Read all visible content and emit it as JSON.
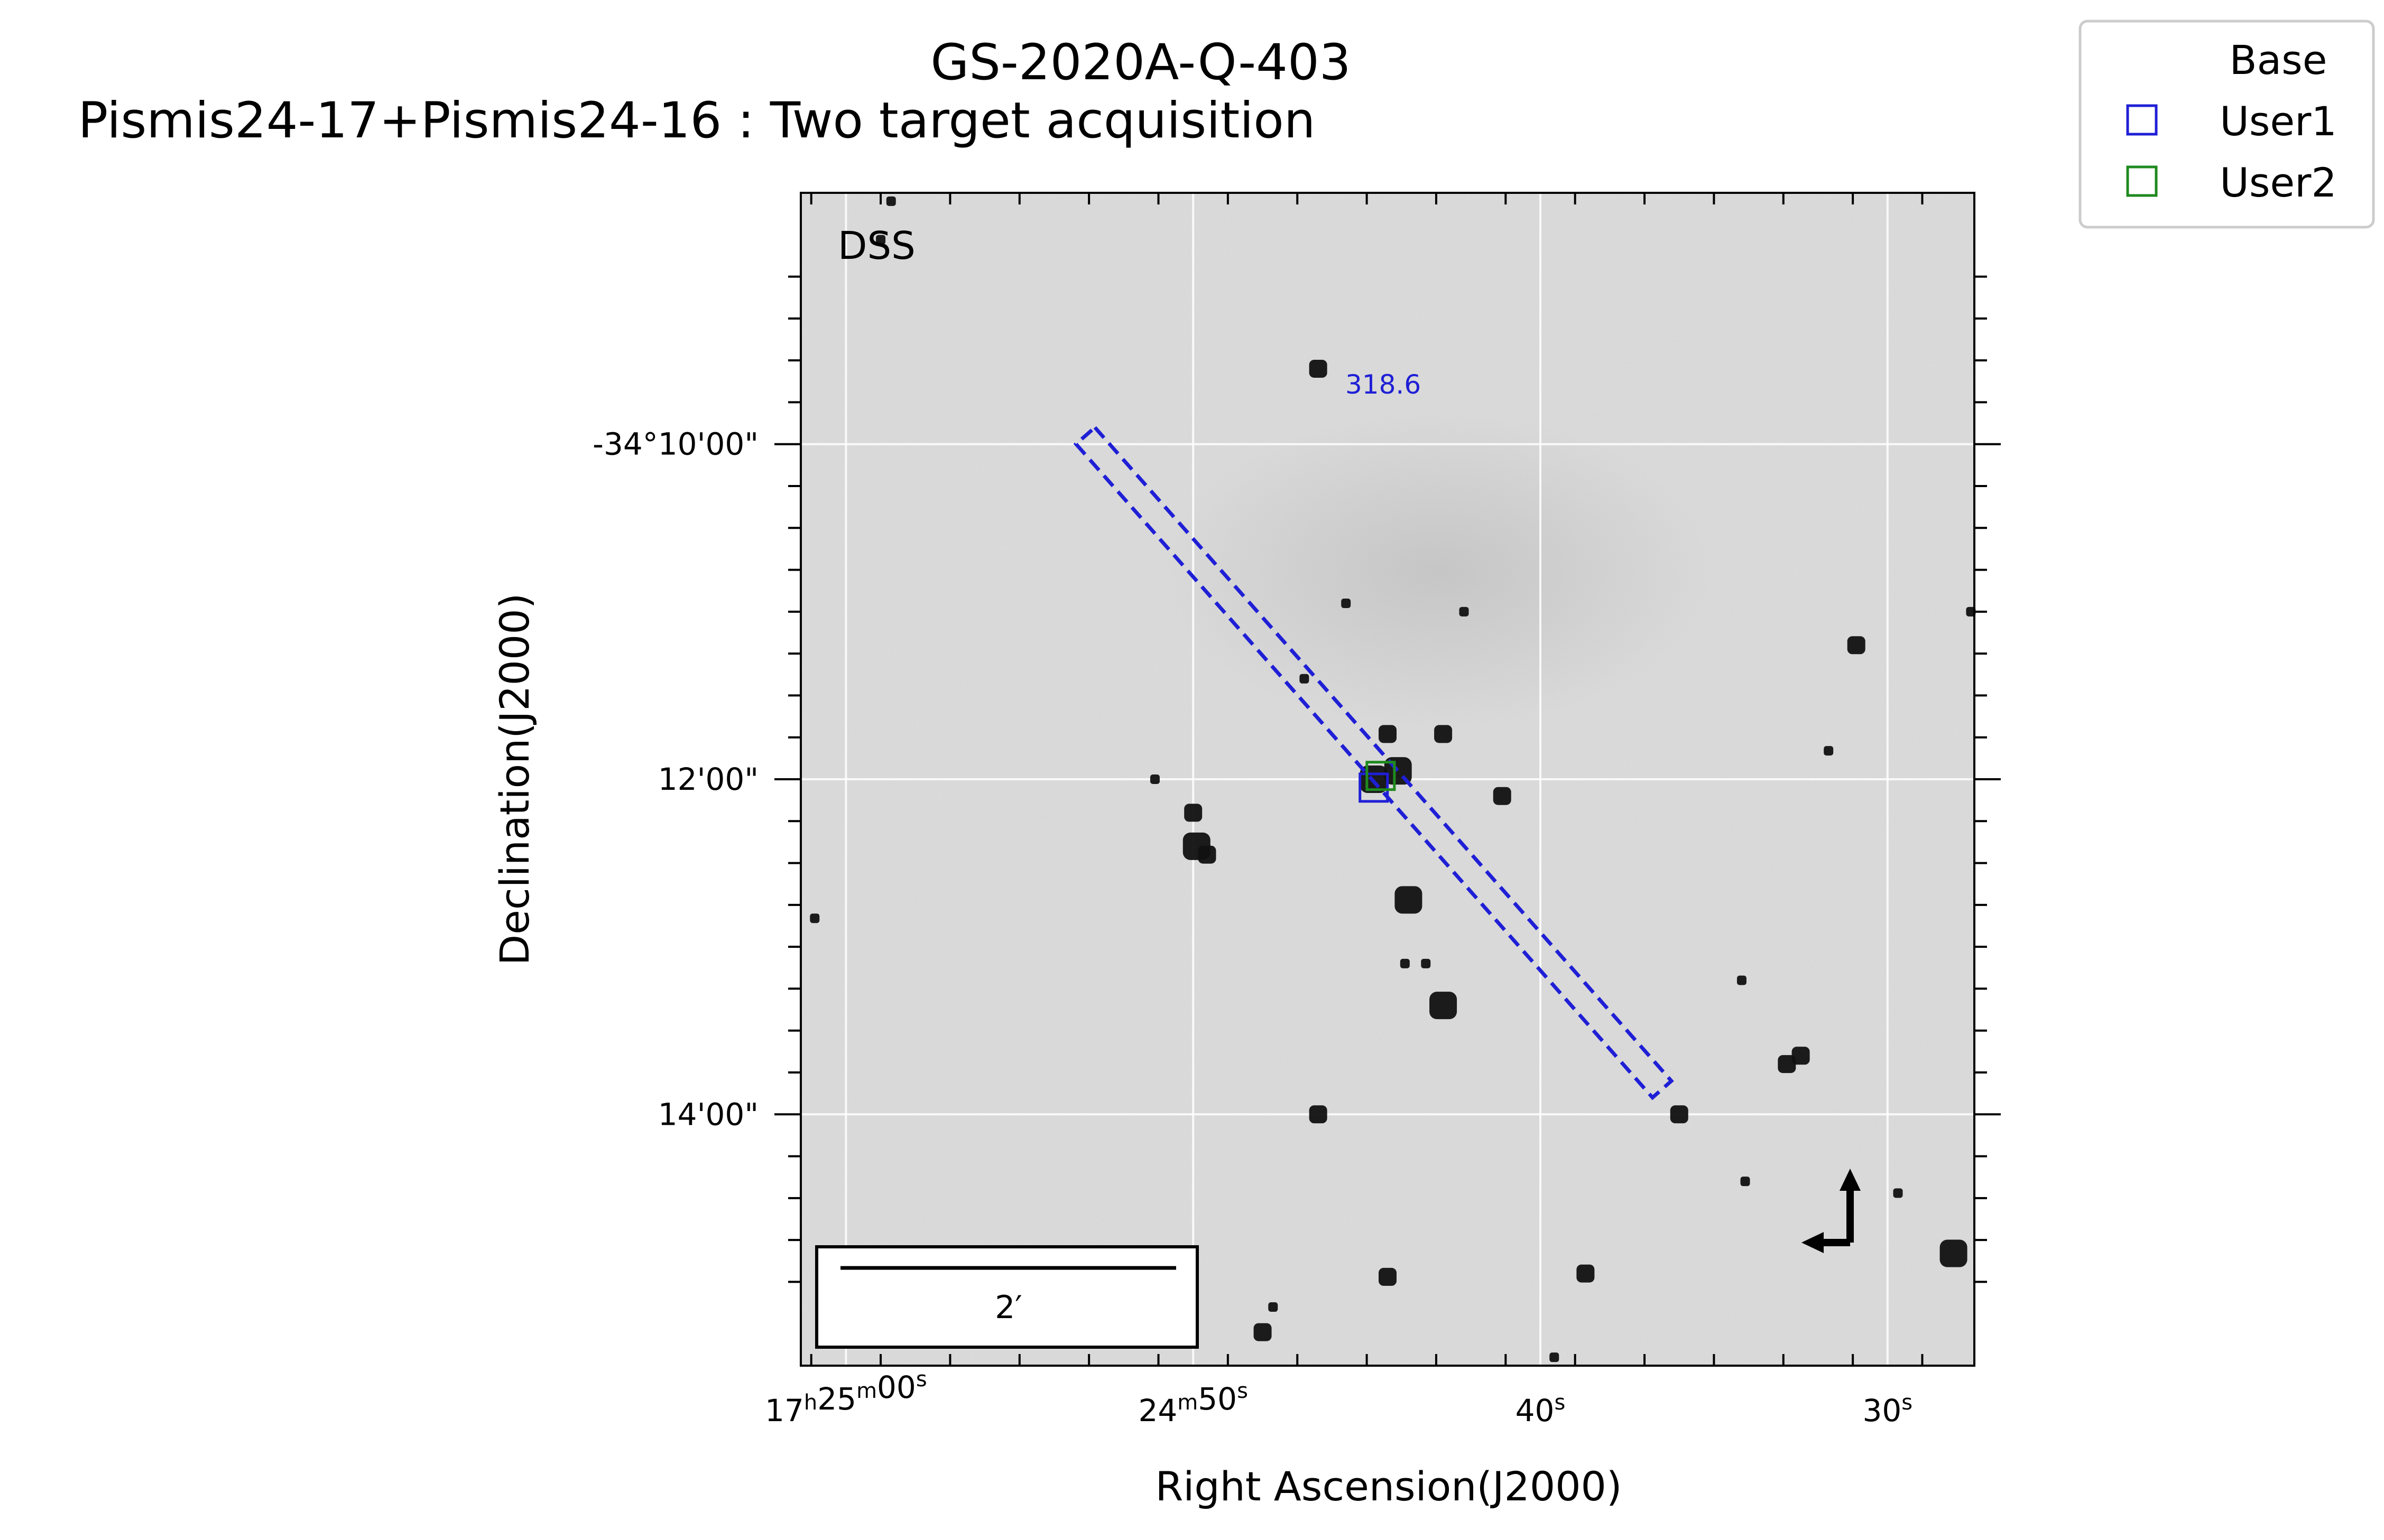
{
  "chart_data": {
    "type": "scatter",
    "title": "GS-2020A-Q-403",
    "subtitle": "Pismis24-17+Pismis24-16 : Two target acquisition",
    "xlabel": "Right Ascension(J2000)",
    "ylabel": "Declination(J2000)",
    "survey_label": "DSS",
    "xlim_seconds": [
      61.3,
      27.5
    ],
    "ylim_arcmin": [
      8.5,
      15.5
    ],
    "grid": true,
    "legend_position": "top-right, outside the axes",
    "x_ticks": [
      {
        "value": 60,
        "parts": [
          [
            "17",
            "h"
          ],
          [
            "25",
            "m"
          ],
          [
            "00",
            "s"
          ]
        ]
      },
      {
        "value": 50,
        "parts": [
          [
            "24",
            "m"
          ],
          [
            "50",
            "s"
          ]
        ]
      },
      {
        "value": 40,
        "parts": [
          [
            "40",
            "s"
          ]
        ]
      },
      {
        "value": 30,
        "parts": [
          [
            "30",
            "s"
          ]
        ]
      }
    ],
    "y_ticks": [
      {
        "value": 10,
        "label": "-34°10'00\""
      },
      {
        "value": 12,
        "label": "12'00\""
      },
      {
        "value": 14,
        "label": "14'00\""
      }
    ],
    "legend": [
      {
        "name": "Base",
        "color": ""
      },
      {
        "name": "User1",
        "color": "#1f1fd6"
      },
      {
        "name": "User2",
        "color": "#1f8a1f"
      }
    ],
    "pa_label": "318.6",
    "scale_bar_label": "2′",
    "slit": {
      "center_ra_s": 44.8,
      "center_dec_arcmin": 11.9,
      "position_angle_deg": 318.6,
      "length_arcmin": 5.2,
      "width_arcmin": 0.15,
      "color": "#1f1fd6"
    },
    "targets": [
      {
        "name": "User1",
        "ra_s": 44.8,
        "dec_arcmin": 12.05,
        "color": "#1f1fd6"
      },
      {
        "name": "User2",
        "ra_s": 44.6,
        "dec_arcmin": 11.98,
        "color": "#1f8a1f"
      }
    ],
    "stars": [
      {
        "ra_s": 46.4,
        "dec_arcmin": 9.55,
        "mag": 2
      },
      {
        "ra_s": 44.1,
        "dec_arcmin": 11.95,
        "mag": 3
      },
      {
        "ra_s": 44.4,
        "dec_arcmin": 11.73,
        "mag": 2
      },
      {
        "ra_s": 42.8,
        "dec_arcmin": 11.73,
        "mag": 2
      },
      {
        "ra_s": 44.8,
        "dec_arcmin": 12.0,
        "mag": 3
      },
      {
        "ra_s": 49.9,
        "dec_arcmin": 12.4,
        "mag": 3
      },
      {
        "ra_s": 50.0,
        "dec_arcmin": 12.2,
        "mag": 2
      },
      {
        "ra_s": 49.6,
        "dec_arcmin": 12.45,
        "mag": 2
      },
      {
        "ra_s": 43.8,
        "dec_arcmin": 12.72,
        "mag": 3
      },
      {
        "ra_s": 43.9,
        "dec_arcmin": 13.1,
        "mag": 1
      },
      {
        "ra_s": 42.8,
        "dec_arcmin": 13.35,
        "mag": 3
      },
      {
        "ra_s": 41.1,
        "dec_arcmin": 12.1,
        "mag": 2
      },
      {
        "ra_s": 34.2,
        "dec_arcmin": 13.2,
        "mag": 1
      },
      {
        "ra_s": 32.5,
        "dec_arcmin": 13.65,
        "mag": 2
      },
      {
        "ra_s": 32.9,
        "dec_arcmin": 13.7,
        "mag": 2
      },
      {
        "ra_s": 30.9,
        "dec_arcmin": 11.2,
        "mag": 2
      },
      {
        "ra_s": 31.7,
        "dec_arcmin": 11.83,
        "mag": 1
      },
      {
        "ra_s": 36.0,
        "dec_arcmin": 14.0,
        "mag": 2
      },
      {
        "ra_s": 46.4,
        "dec_arcmin": 14.0,
        "mag": 2
      },
      {
        "ra_s": 38.7,
        "dec_arcmin": 14.95,
        "mag": 2
      },
      {
        "ra_s": 44.4,
        "dec_arcmin": 14.97,
        "mag": 2
      },
      {
        "ra_s": 28.1,
        "dec_arcmin": 14.83,
        "mag": 3
      },
      {
        "ra_s": 48.0,
        "dec_arcmin": 15.3,
        "mag": 2
      },
      {
        "ra_s": 47.7,
        "dec_arcmin": 15.15,
        "mag": 1
      },
      {
        "ra_s": 39.6,
        "dec_arcmin": 15.45,
        "mag": 1
      },
      {
        "ra_s": 59.0,
        "dec_arcmin": 8.78,
        "mag": 1
      },
      {
        "ra_s": 58.7,
        "dec_arcmin": 8.55,
        "mag": 1
      },
      {
        "ra_s": 60.9,
        "dec_arcmin": 12.83,
        "mag": 1
      },
      {
        "ra_s": 42.2,
        "dec_arcmin": 11.0,
        "mag": 1
      },
      {
        "ra_s": 29.7,
        "dec_arcmin": 14.47,
        "mag": 1
      },
      {
        "ra_s": 27.6,
        "dec_arcmin": 11.0,
        "mag": 1
      },
      {
        "ra_s": 34.1,
        "dec_arcmin": 14.4,
        "mag": 1
      },
      {
        "ra_s": 51.1,
        "dec_arcmin": 12.0,
        "mag": 1
      },
      {
        "ra_s": 43.3,
        "dec_arcmin": 13.1,
        "mag": 1
      },
      {
        "ra_s": 46.8,
        "dec_arcmin": 11.4,
        "mag": 1
      },
      {
        "ra_s": 45.6,
        "dec_arcmin": 10.95,
        "mag": 1
      }
    ]
  }
}
